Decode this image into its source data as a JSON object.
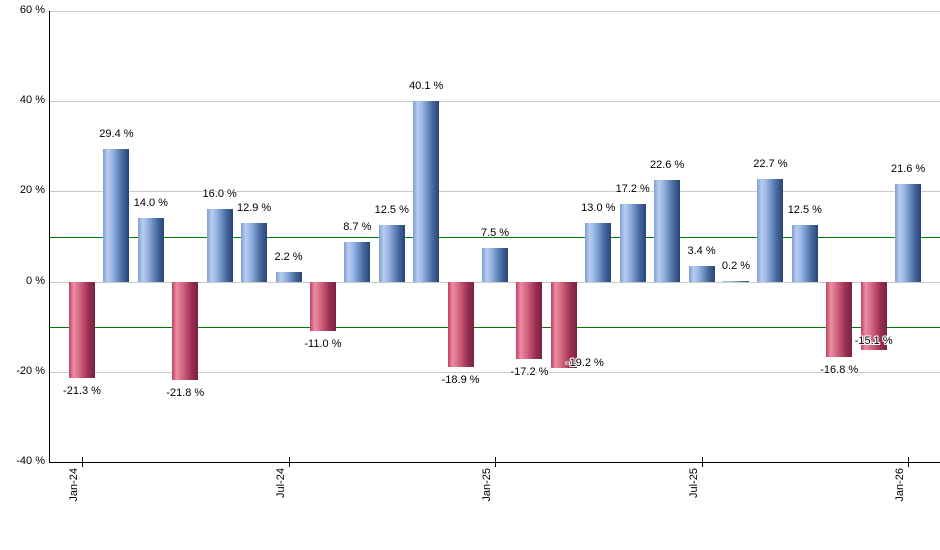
{
  "chart_data": {
    "type": "bar",
    "title": "",
    "unit": "%",
    "ylim": [
      -40,
      60
    ],
    "grid": true,
    "y_ticks": [
      {
        "value": 60,
        "label": "60 %"
      },
      {
        "value": 40,
        "label": "40 %"
      },
      {
        "value": 20,
        "label": "20 %"
      },
      {
        "value": 0,
        "label": "0 %"
      },
      {
        "value": -20,
        "label": "-20 %"
      },
      {
        "value": -40,
        "label": "-40 %"
      }
    ],
    "x_ticks": [
      {
        "index": 0,
        "label": "Jan-24"
      },
      {
        "index": 6,
        "label": "Jul-24"
      },
      {
        "index": 12,
        "label": "Jan-25"
      },
      {
        "index": 18,
        "label": "Jul-25"
      },
      {
        "index": 24,
        "label": "Jan-26"
      }
    ],
    "reference_lines": [
      10,
      -10
    ],
    "bars": [
      {
        "value": -21.3,
        "label": "-21.3 %"
      },
      {
        "value": 29.4,
        "label": "29.4 %"
      },
      {
        "value": 14.0,
        "label": "14.0 %"
      },
      {
        "value": -21.8,
        "label": "-21.8 %"
      },
      {
        "value": 16.0,
        "label": "16.0 %"
      },
      {
        "value": 12.9,
        "label": "12.9 %"
      },
      {
        "value": 2.2,
        "label": "2.2 %"
      },
      {
        "value": -11.0,
        "label": "-11.0 %"
      },
      {
        "value": 8.7,
        "label": "8.7 %"
      },
      {
        "value": 12.5,
        "label": "12.5 %"
      },
      {
        "value": 40.1,
        "label": "40.1 %"
      },
      {
        "value": -18.9,
        "label": "-18.9 %"
      },
      {
        "value": 7.5,
        "label": "7.5 %"
      },
      {
        "value": -17.2,
        "label": "-17.2 %"
      },
      {
        "value": -19.2,
        "label": "-19.2 %"
      },
      {
        "value": 13.0,
        "label": "13.0 %"
      },
      {
        "value": 17.2,
        "label": "17.2 %"
      },
      {
        "value": 22.6,
        "label": "22.6 %"
      },
      {
        "value": 3.4,
        "label": "3.4 %"
      },
      {
        "value": 0.2,
        "label": "0.2 %"
      },
      {
        "value": 22.7,
        "label": "22.7 %"
      },
      {
        "value": 12.5,
        "label": "12.5 %"
      },
      {
        "value": -16.8,
        "label": "-16.8 %"
      },
      {
        "value": -15.1,
        "label": "-15.1 %"
      },
      {
        "value": 21.6,
        "label": "21.6 %"
      }
    ],
    "colors": {
      "positive_light": "#b7cdf0",
      "positive_dark": "#243f6b",
      "negative_light": "#ec8da2",
      "negative_dark": "#7a2040",
      "reference_line": "#007a00",
      "grid": "#c9c9c9",
      "axis": "#000000",
      "background": "#ffffff"
    }
  }
}
